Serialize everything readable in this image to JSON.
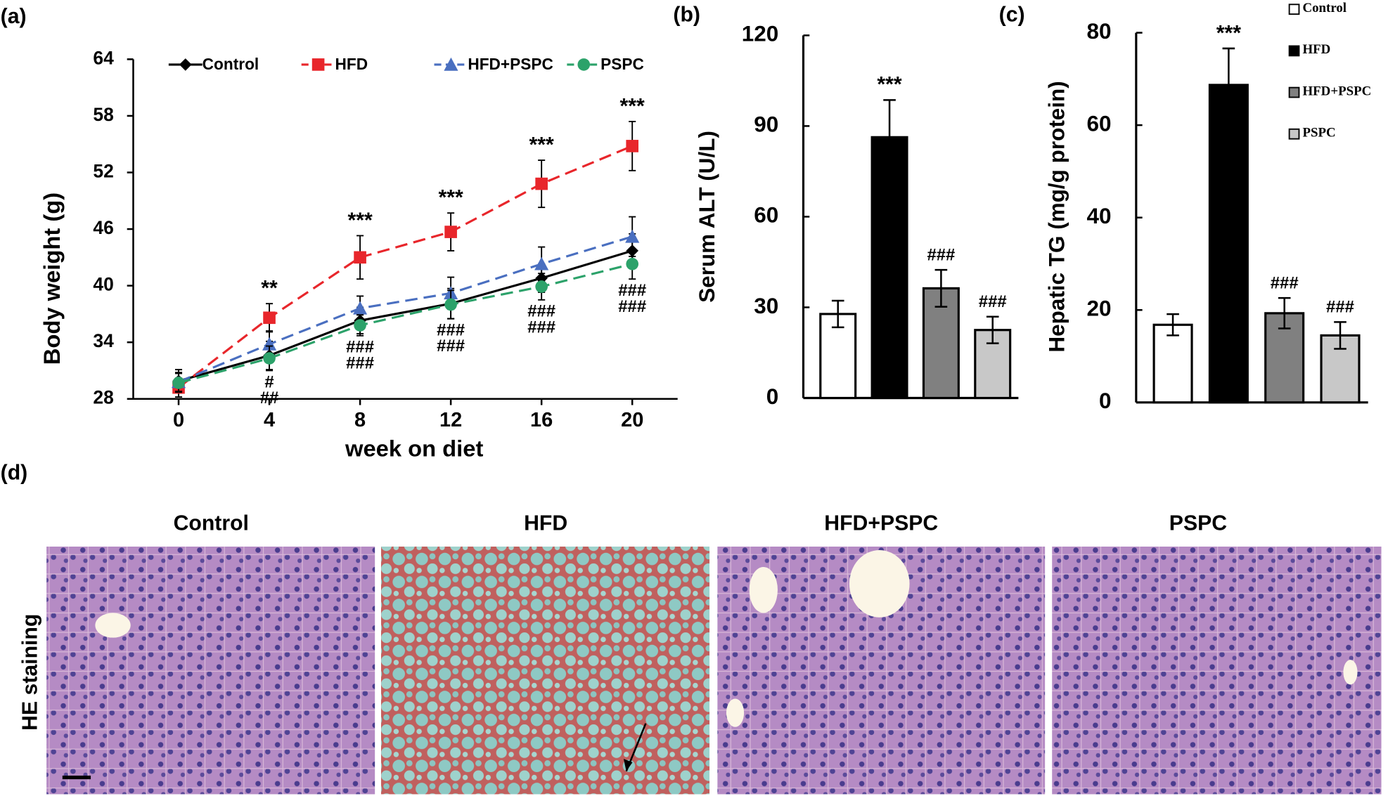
{
  "chart_data": [
    {
      "type": "line",
      "label": "(a)",
      "ylabel": "Body weight (g)",
      "xlabel": "week on diet",
      "x": [
        0,
        4,
        8,
        12,
        16,
        20
      ],
      "xlim": [
        -2,
        22
      ],
      "xticks": [
        0,
        4,
        8,
        12,
        16,
        20
      ],
      "ylim": [
        28,
        64
      ],
      "yticks": [
        28,
        34,
        40,
        46,
        52,
        58,
        64
      ],
      "series": [
        {
          "name": "Control",
          "color": "#000000",
          "marker": "diamond",
          "dash": false,
          "values": [
            29.9,
            32.6,
            36.3,
            38.1,
            40.8,
            43.7
          ],
          "errors": [
            1.2,
            1.5,
            1.4,
            1.6,
            1.5,
            1.8
          ]
        },
        {
          "name": "HFD",
          "color": "#e8262b",
          "marker": "square",
          "dash": true,
          "values": [
            29.2,
            36.6,
            43,
            45.7,
            50.8,
            54.8
          ],
          "errors": [
            1,
            1.5,
            2.3,
            2,
            2.5,
            2.6
          ]
        },
        {
          "name": "HFD+PSPC",
          "color": "#4a6fc0",
          "marker": "triangle",
          "dash": true,
          "values": [
            29.8,
            33.8,
            37.6,
            39.2,
            42.3,
            45.2
          ],
          "errors": [
            1,
            1.4,
            1.3,
            1.7,
            1.8,
            2.1
          ]
        },
        {
          "name": "PSPC",
          "color": "#2ca26a",
          "marker": "circle",
          "dash": true,
          "values": [
            29.7,
            32.3,
            35.8,
            38,
            39.9,
            42.3
          ],
          "errors": [
            1,
            1.3,
            1.1,
            1.5,
            1.4,
            1.6
          ]
        }
      ],
      "notes_above": [
        {
          "x": 4,
          "text": "**"
        },
        {
          "x": 8,
          "text": "***"
        },
        {
          "x": 12,
          "text": "***"
        },
        {
          "x": 16,
          "text": "***"
        },
        {
          "x": 20,
          "text": "***"
        }
      ],
      "notes_below": [
        {
          "x": 4,
          "lines": [
            "#",
            "##"
          ]
        },
        {
          "x": 8,
          "lines": [
            "###",
            "###"
          ]
        },
        {
          "x": 12,
          "lines": [
            "###",
            "###"
          ]
        },
        {
          "x": 16,
          "lines": [
            "###",
            "###"
          ]
        },
        {
          "x": 20,
          "lines": [
            "###",
            "###"
          ]
        }
      ]
    },
    {
      "type": "bar",
      "label": "(b)",
      "ylabel": "Serum ALT (U/L)",
      "ylim": [
        0,
        120
      ],
      "yticks": [
        0,
        30,
        60,
        90,
        120
      ],
      "values": [
        27.8,
        86.3,
        36.3,
        22.5
      ],
      "errors": [
        4.4,
        12.3,
        6.1,
        4.4
      ],
      "colors": [
        "#ffffff",
        "#000000",
        "#808080",
        "#c8c8c8"
      ],
      "notes": [
        {
          "index": 1,
          "text": "***"
        },
        {
          "index": 2,
          "text": "###"
        },
        {
          "index": 3,
          "text": "###"
        }
      ]
    },
    {
      "type": "bar",
      "label": "(c)",
      "ylabel": "Hepatic TG (mg/g protein)",
      "ylim": [
        0,
        80
      ],
      "yticks": [
        0,
        20,
        40,
        60,
        80
      ],
      "categories": [
        "Control",
        "HFD",
        "HFD+PSPC",
        "PSPC"
      ],
      "values": [
        16.8,
        68.7,
        19.3,
        14.5
      ],
      "errors": [
        2.3,
        7.9,
        3.3,
        2.9
      ],
      "colors": [
        "#ffffff",
        "#000000",
        "#808080",
        "#c8c8c8"
      ],
      "notes": [
        {
          "index": 1,
          "text": "***"
        },
        {
          "index": 2,
          "text": "###"
        },
        {
          "index": 3,
          "text": "###"
        }
      ]
    }
  ],
  "panel_d": {
    "label": "(d)",
    "row_label": "HE staining",
    "columns": [
      "Control",
      "HFD",
      "HFD+PSPC",
      "PSPC"
    ]
  }
}
